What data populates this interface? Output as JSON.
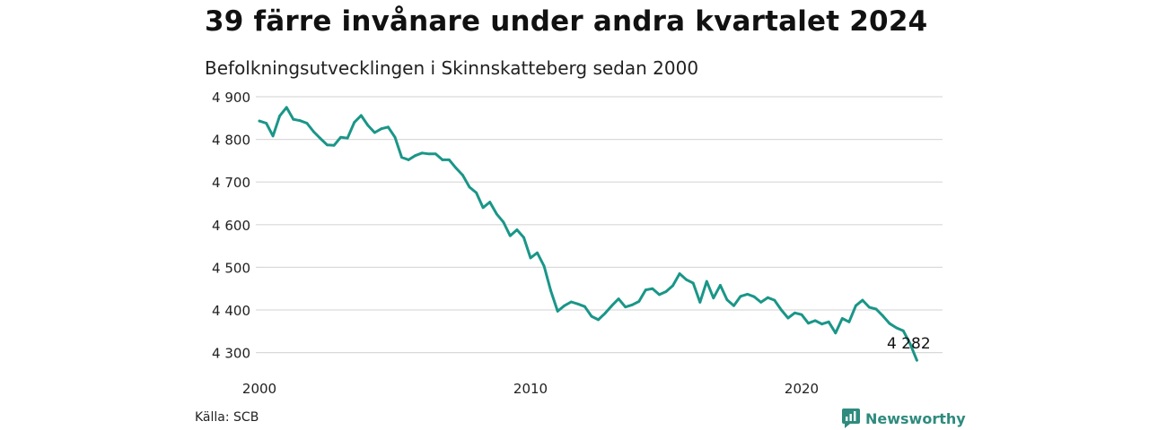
{
  "header": {
    "title": "39 färre invånare under andra kvartalet 2024",
    "subtitle": "Befolkningsutvecklingen i Skinnskatteberg sedan 2000"
  },
  "footer": {
    "source": "Källa: SCB",
    "brand": "Newsworthy"
  },
  "colors": {
    "line": "#1a9688",
    "grid": "#d9d9d9",
    "brand": "#2e8b7e"
  },
  "chart_data": {
    "type": "line",
    "title": "39 färre invånare under andra kvartalet 2024",
    "subtitle": "Befolkningsutvecklingen i Skinnskatteberg sedan 2000",
    "xlabel": "",
    "ylabel": "",
    "x_ticks": [
      "2000",
      "2010",
      "2020"
    ],
    "y_ticks": [
      {
        "value": 4300,
        "label": "4 300"
      },
      {
        "value": 4400,
        "label": "4 400"
      },
      {
        "value": 4500,
        "label": "4 500"
      },
      {
        "value": 4600,
        "label": "4 600"
      },
      {
        "value": 4700,
        "label": "4 700"
      },
      {
        "value": 4800,
        "label": "4 800"
      },
      {
        "value": 4900,
        "label": "4 900"
      }
    ],
    "ylim": [
      4270,
      4900
    ],
    "grid": true,
    "legend": "none",
    "end_label": "4 282",
    "series": [
      {
        "x": [
          "2000-Q1",
          "2000-Q2",
          "2000-Q3",
          "2000-Q4",
          "2001-Q1",
          "2001-Q2",
          "2001-Q3",
          "2001-Q4",
          "2002-Q1",
          "2002-Q2",
          "2002-Q3",
          "2002-Q4",
          "2003-Q1",
          "2003-Q2",
          "2003-Q3",
          "2003-Q4",
          "2004-Q1",
          "2004-Q2",
          "2004-Q3",
          "2004-Q4",
          "2005-Q1",
          "2005-Q2",
          "2005-Q3",
          "2005-Q4",
          "2006-Q1",
          "2006-Q2",
          "2006-Q3",
          "2006-Q4",
          "2007-Q1",
          "2007-Q2",
          "2007-Q3",
          "2007-Q4",
          "2008-Q1",
          "2008-Q2",
          "2008-Q3",
          "2008-Q4",
          "2009-Q1",
          "2009-Q2",
          "2009-Q3",
          "2009-Q4",
          "2010-Q1",
          "2010-Q2",
          "2010-Q3",
          "2010-Q4",
          "2011-Q1",
          "2011-Q2",
          "2011-Q3",
          "2011-Q4",
          "2012-Q1",
          "2012-Q2",
          "2012-Q3",
          "2012-Q4",
          "2013-Q1",
          "2013-Q2",
          "2013-Q3",
          "2013-Q4",
          "2014-Q1",
          "2014-Q2",
          "2014-Q3",
          "2014-Q4",
          "2015-Q1",
          "2015-Q2",
          "2015-Q3",
          "2015-Q4",
          "2016-Q1",
          "2016-Q2",
          "2016-Q3",
          "2016-Q4",
          "2017-Q1",
          "2017-Q2",
          "2017-Q3",
          "2017-Q4",
          "2018-Q1",
          "2018-Q2",
          "2018-Q3",
          "2018-Q4",
          "2019-Q1",
          "2019-Q2",
          "2019-Q3",
          "2019-Q4",
          "2020-Q1",
          "2020-Q2",
          "2020-Q3",
          "2020-Q4",
          "2021-Q1",
          "2021-Q2",
          "2021-Q3",
          "2021-Q4",
          "2022-Q1",
          "2022-Q2",
          "2022-Q3",
          "2022-Q4",
          "2023-Q1",
          "2023-Q2",
          "2023-Q3",
          "2023-Q4",
          "2024-Q1",
          "2024-Q2"
        ],
        "values": [
          4843,
          4838,
          4808,
          4855,
          4875,
          4847,
          4844,
          4838,
          4818,
          4802,
          4787,
          4786,
          4805,
          4803,
          4840,
          4856,
          4833,
          4816,
          4825,
          4829,
          4805,
          4758,
          4752,
          4762,
          4768,
          4766,
          4766,
          4752,
          4752,
          4733,
          4716,
          4688,
          4675,
          4640,
          4653,
          4625,
          4606,
          4574,
          4588,
          4570,
          4522,
          4534,
          4503,
          4445,
          4397,
          4410,
          4419,
          4414,
          4408,
          4385,
          4377,
          4392,
          4410,
          4426,
          4407,
          4412,
          4420,
          4447,
          4450,
          4436,
          4443,
          4457,
          4485,
          4471,
          4463,
          4418,
          4467,
          4428,
          4458,
          4424,
          4410,
          4432,
          4437,
          4431,
          4418,
          4429,
          4423,
          4400,
          4381,
          4393,
          4389,
          4369,
          4375,
          4367,
          4372,
          4346,
          4380,
          4372,
          4410,
          4423,
          4406,
          4402,
          4386,
          4368,
          4358,
          4351,
          4321,
          4282
        ]
      }
    ]
  }
}
